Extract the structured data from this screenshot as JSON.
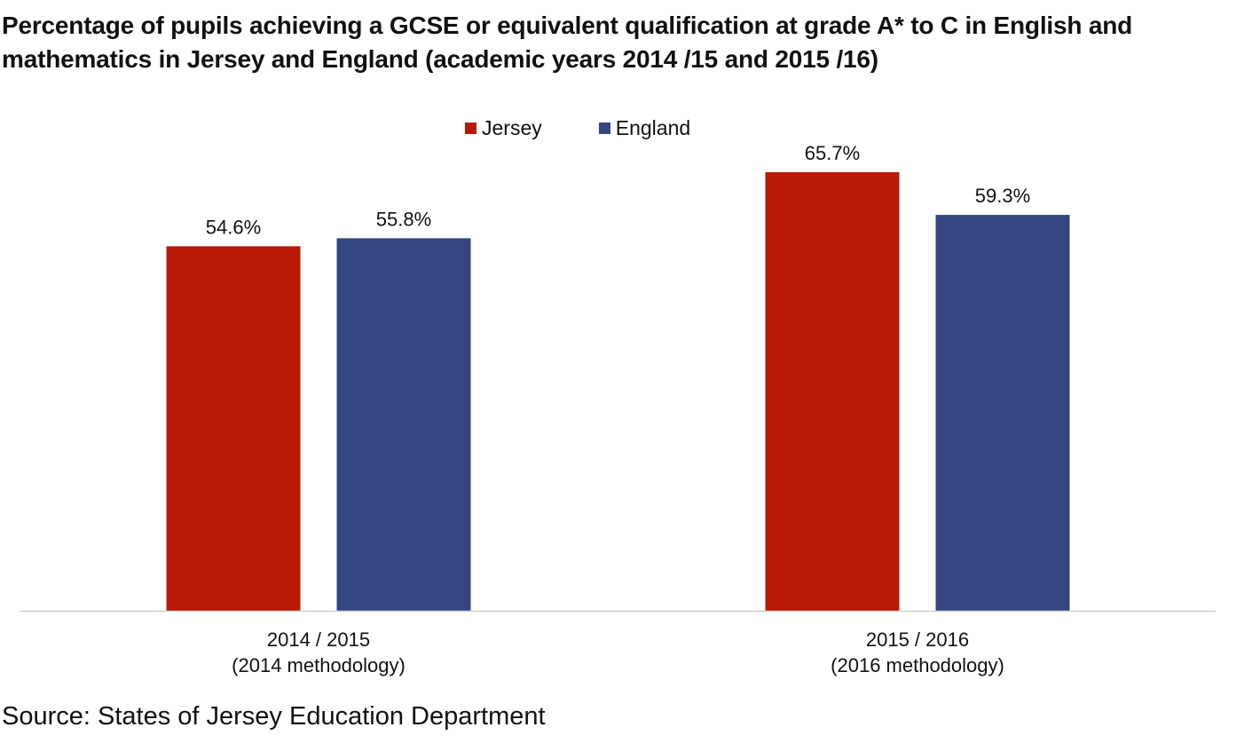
{
  "chart_data": {
    "type": "bar",
    "title": "Percentage of pupils achieving a GCSE or equivalent qualification at grade A* to C in English and mathematics in Jersey and England (academic years 2014 /15 and 2015 /16)",
    "categories": [
      [
        "2014 / 2015",
        "(2014 methodology)"
      ],
      [
        "2015 / 2016",
        "(2016 methodology)"
      ]
    ],
    "series": [
      {
        "name": "Jersey",
        "color": "#b81906",
        "values": [
          54.6,
          65.7
        ],
        "labels": [
          "54.6%",
          "65.7%"
        ]
      },
      {
        "name": "England",
        "color": "#34467f",
        "values": [
          55.8,
          59.3
        ],
        "labels": [
          "55.8%",
          "59.3%"
        ]
      }
    ],
    "xlabel": "",
    "ylabel": "",
    "ylim": [
      0,
      100
    ],
    "grid": false,
    "legend_position": "top-center"
  },
  "source": "Source: States of Jersey Education Department"
}
